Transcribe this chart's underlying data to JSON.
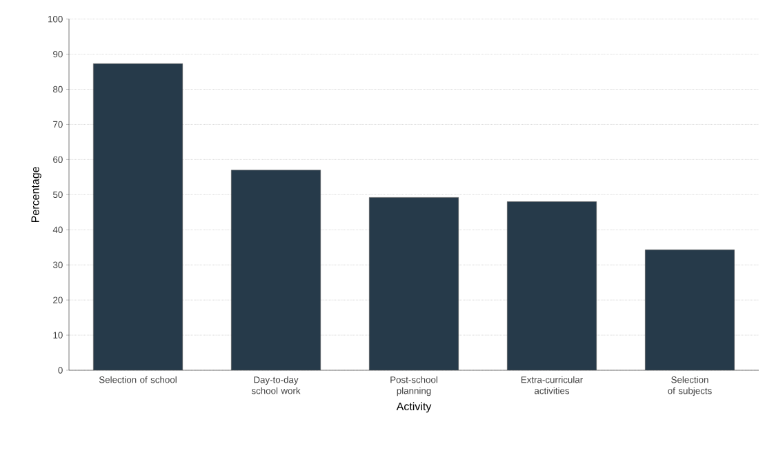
{
  "chart_data": {
    "type": "bar",
    "xlabel": "Activity",
    "ylabel": "Percentage",
    "categories": [
      "Selection of school",
      "Day-to-day school work",
      "Post-school planning",
      "Extra-curricular activities",
      "Selection of subjects"
    ],
    "values": [
      87.3,
      57,
      49.2,
      48,
      34.3
    ],
    "color": "#263a4a",
    "ylim": [
      0,
      100
    ],
    "yticks": [
      0,
      10,
      20,
      30,
      40,
      50,
      60,
      70,
      80,
      90,
      100
    ],
    "grid": "y"
  }
}
